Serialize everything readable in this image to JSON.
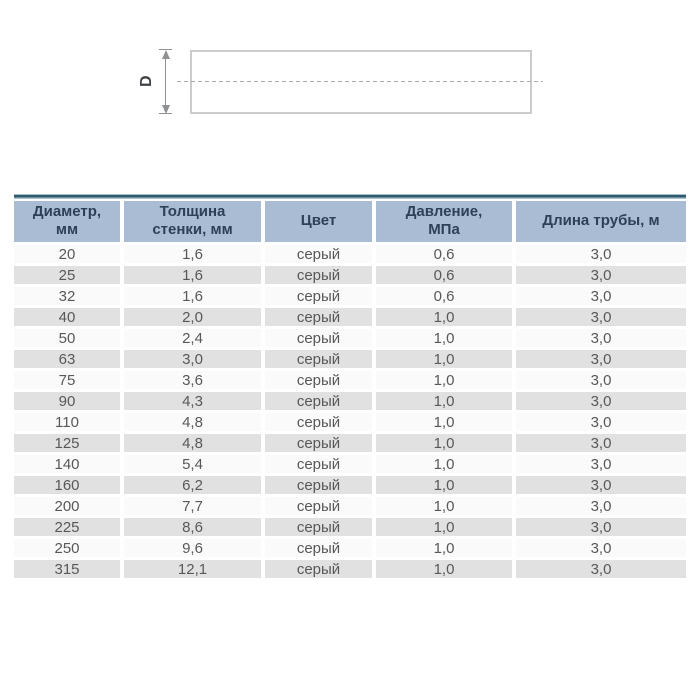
{
  "diagram": {
    "dimension_label": "D"
  },
  "colors": {
    "header_bg": "#a9bcd3",
    "header_text": "#2e3f58",
    "top_bar": "#2e5966",
    "top_bar_edge": "#a5c2d4",
    "row_alt": "#e1e1e1",
    "row_base": "#fafafa",
    "cell_text": "#58585a",
    "drawing_line": "#8f9193",
    "drawing_rect_border": "#cccccc",
    "centerline": "#ababab"
  },
  "table": {
    "columns": [
      {
        "id": "diameter",
        "label": "Диаметр,\nмм"
      },
      {
        "id": "wall-thickness",
        "label": "Толщина\nстенки, мм"
      },
      {
        "id": "color",
        "label": "Цвет"
      },
      {
        "id": "pressure",
        "label": "Давление,\nМПа"
      },
      {
        "id": "pipe-length",
        "label": "Длина трубы, м"
      }
    ],
    "rows": [
      [
        "20",
        "1,6",
        "серый",
        "0,6",
        "3,0"
      ],
      [
        "25",
        "1,6",
        "серый",
        "0,6",
        "3,0"
      ],
      [
        "32",
        "1,6",
        "серый",
        "0,6",
        "3,0"
      ],
      [
        "40",
        "2,0",
        "серый",
        "1,0",
        "3,0"
      ],
      [
        "50",
        "2,4",
        "серый",
        "1,0",
        "3,0"
      ],
      [
        "63",
        "3,0",
        "серый",
        "1,0",
        "3,0"
      ],
      [
        "75",
        "3,6",
        "серый",
        "1,0",
        "3,0"
      ],
      [
        "90",
        "4,3",
        "серый",
        "1,0",
        "3,0"
      ],
      [
        "110",
        "4,8",
        "серый",
        "1,0",
        "3,0"
      ],
      [
        "125",
        "4,8",
        "серый",
        "1,0",
        "3,0"
      ],
      [
        "140",
        "5,4",
        "серый",
        "1,0",
        "3,0"
      ],
      [
        "160",
        "6,2",
        "серый",
        "1,0",
        "3,0"
      ],
      [
        "200",
        "7,7",
        "серый",
        "1,0",
        "3,0"
      ],
      [
        "225",
        "8,6",
        "серый",
        "1,0",
        "3,0"
      ],
      [
        "250",
        "9,6",
        "серый",
        "1,0",
        "3,0"
      ],
      [
        "315",
        "12,1",
        "серый",
        "1,0",
        "3,0"
      ]
    ]
  }
}
